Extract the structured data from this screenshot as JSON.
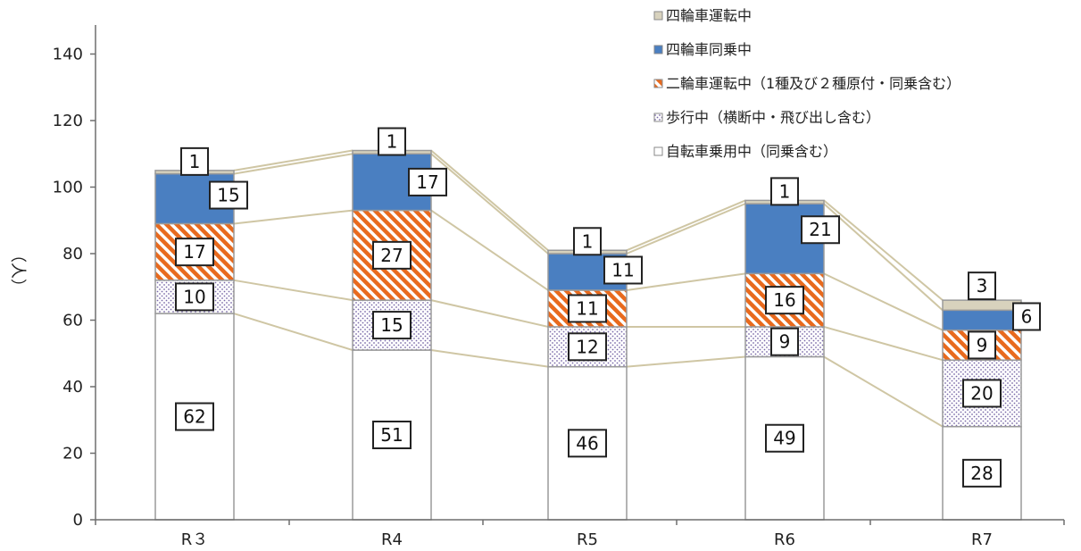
{
  "chart_data": {
    "type": "bar",
    "stacked": true,
    "categories": [
      "R３",
      "R4",
      "R5",
      "R6",
      "R7"
    ],
    "series": [
      {
        "name": "自転車乗用中（同乗含む）",
        "values": [
          62,
          51,
          46,
          49,
          28
        ],
        "color": "#ffffff",
        "pattern": "none"
      },
      {
        "name": "歩行中（横断中・飛び出し含む）",
        "values": [
          10,
          15,
          12,
          9,
          20
        ],
        "color": "#7a6aa8",
        "pattern": "dots"
      },
      {
        "name": "二輪車運転中（1種及び２種原付・同乗含む）",
        "values": [
          17,
          27,
          11,
          16,
          9
        ],
        "color": "#e86a1e",
        "pattern": "diagonal"
      },
      {
        "name": "四輪車同乗中",
        "values": [
          15,
          17,
          11,
          21,
          6
        ],
        "color": "#4a7fc1",
        "pattern": "none"
      },
      {
        "name": "四輪車運転中",
        "values": [
          1,
          1,
          1,
          1,
          3
        ],
        "color": "#d8d2bd",
        "pattern": "none"
      }
    ],
    "ylabel": "（人）",
    "xlabel": "",
    "ylim": [
      0,
      150
    ],
    "yticks": [
      0,
      20,
      40,
      60,
      80,
      100,
      120,
      140
    ],
    "grid": false,
    "legend_position": "top-right",
    "connector_lines": true
  }
}
